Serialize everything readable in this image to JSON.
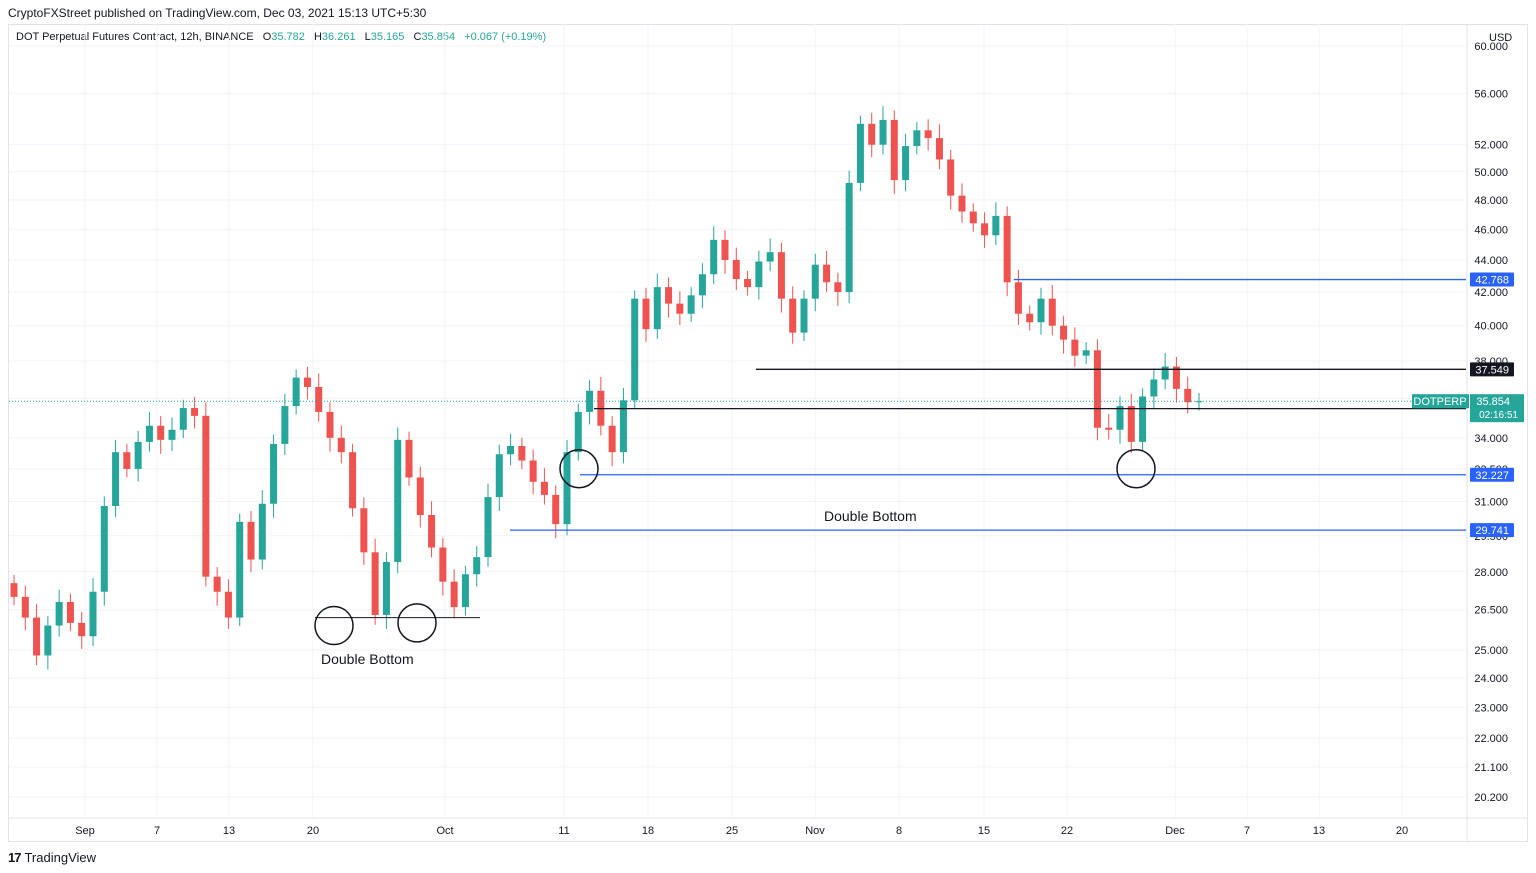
{
  "publisher": "CryptoFXStreet published on TradingView.com, Dec 03, 2021 15:13 UTC+5:30",
  "symbol": {
    "name": "DOT Perpetual Futures Contract, 12h, BINANCE",
    "o_label": "O",
    "o": "35.782",
    "h_label": "H",
    "h": "36.261",
    "l_label": "L",
    "l": "35.165",
    "c_label": "C",
    "c": "35.854",
    "change": "+0.067 (+0.19%)"
  },
  "footer": {
    "logo_mark": "17",
    "logo_text": "TradingView"
  },
  "colors": {
    "up": "#26a69a",
    "down": "#ef5350",
    "blue_line": "#2962ff",
    "black_line": "#131722"
  },
  "chart_data": {
    "type": "candlestick",
    "currency": "USD",
    "scale": "log",
    "ylim": [
      19.5,
      61
    ],
    "y_ticks": [
      "20.200",
      "21.100",
      "22.000",
      "23.000",
      "24.000",
      "25.000",
      "26.500",
      "28.000",
      "29.500",
      "31.000",
      "32.500",
      "34.000",
      "36.000",
      "38.000",
      "40.000",
      "42.000",
      "44.000",
      "46.000",
      "48.000",
      "50.000",
      "52.000",
      "56.000",
      "60.000"
    ],
    "x_ticks": [
      "Sep",
      "7",
      "13",
      "20",
      "Oct",
      "11",
      "18",
      "25",
      "Nov",
      "8",
      "15",
      "22",
      "Dec",
      "7",
      "13",
      "20"
    ],
    "last_price": {
      "label": "DOTPERP",
      "value": "35.854",
      "countdown": "02:16:51"
    },
    "price_labels": [
      {
        "value": "42.768",
        "kind": "blue"
      },
      {
        "value": "37.549",
        "kind": "black"
      },
      {
        "value": "35.471",
        "kind": "black"
      },
      {
        "value": "32.227",
        "kind": "blue"
      },
      {
        "value": "29.741",
        "kind": "blue"
      }
    ],
    "annotations": [
      "Double Bottom",
      "Double Bottom"
    ],
    "close_path": [
      27.0,
      26.2,
      24.8,
      25.9,
      26.8,
      26.0,
      25.5,
      27.2,
      30.8,
      33.3,
      32.5,
      33.8,
      34.6,
      33.9,
      34.4,
      35.5,
      35.1,
      27.8,
      27.2,
      26.2,
      30.1,
      28.5,
      30.9,
      33.7,
      35.6,
      37.1,
      36.6,
      35.3,
      34.0,
      33.3,
      30.7,
      28.8,
      26.3,
      28.4,
      33.9,
      32.1,
      30.4,
      29.0,
      27.6,
      26.6,
      27.9,
      28.6,
      31.2,
      33.2,
      33.6,
      32.9,
      31.9,
      31.3,
      30.0,
      33.3,
      35.3,
      36.4,
      34.6,
      33.3,
      35.9,
      41.6,
      39.8,
      42.3,
      41.3,
      40.7,
      41.8,
      43.1,
      45.3,
      44.0,
      42.8,
      42.3,
      43.9,
      44.5,
      41.6,
      39.6,
      41.6,
      43.7,
      42.6,
      42.0,
      49.2,
      53.6,
      52.0,
      53.9,
      49.4,
      51.9,
      53.1,
      52.5,
      50.9,
      48.3,
      47.2,
      46.4,
      45.6,
      46.9,
      42.6,
      40.7,
      40.2,
      41.6,
      40.0,
      39.2,
      38.3,
      38.6,
      34.5,
      34.4,
      35.6,
      33.8,
      36.1,
      37.0,
      37.7,
      36.5,
      35.8,
      35.85
    ]
  }
}
